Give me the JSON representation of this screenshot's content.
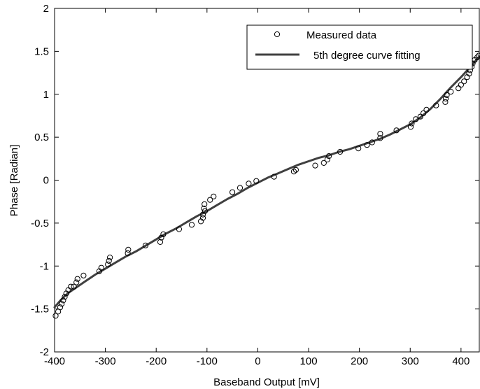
{
  "chart_data": {
    "type": "scatter",
    "title": "",
    "xlabel": "Baseband Output [mV]",
    "ylabel": "Phase [Radian]",
    "xlim": [
      -400,
      436
    ],
    "ylim": [
      -2,
      2
    ],
    "xticks": [
      -400,
      -300,
      -200,
      -100,
      0,
      100,
      200,
      300,
      400
    ],
    "yticks": [
      -2,
      -1.5,
      -1,
      -0.5,
      0,
      0.5,
      1,
      1.5,
      2
    ],
    "xtick_labels": [
      "-400",
      "-300",
      "-200",
      "-100",
      "0",
      "100",
      "200",
      "300",
      "400"
    ],
    "ytick_labels": [
      "-2",
      "-1.5",
      "-1",
      "-0.5",
      "0",
      "0.5",
      "1",
      "1.5",
      "2"
    ],
    "grid": false,
    "legend_position": "top-right",
    "series": [
      {
        "name": "Measured data",
        "marker": "open-circle",
        "color": "#000000",
        "points": [
          [
            -398,
            -1.58
          ],
          [
            -393,
            -1.53
          ],
          [
            -389,
            -1.48
          ],
          [
            -386,
            -1.44
          ],
          [
            -383,
            -1.4
          ],
          [
            -380,
            -1.36
          ],
          [
            -377,
            -1.32
          ],
          [
            -373,
            -1.28
          ],
          [
            -368,
            -1.24
          ],
          [
            -362,
            -1.24
          ],
          [
            -357,
            -1.19
          ],
          [
            -355,
            -1.15
          ],
          [
            -343,
            -1.11
          ],
          [
            -312,
            -1.06
          ],
          [
            -308,
            -1.02
          ],
          [
            -295,
            -0.98
          ],
          [
            -293,
            -0.94
          ],
          [
            -291,
            -0.9
          ],
          [
            -256,
            -0.85
          ],
          [
            -255,
            -0.81
          ],
          [
            -221,
            -0.76
          ],
          [
            -192,
            -0.72
          ],
          [
            -190,
            -0.67
          ],
          [
            -186,
            -0.63
          ],
          [
            -155,
            -0.57
          ],
          [
            -130,
            -0.52
          ],
          [
            -112,
            -0.48
          ],
          [
            -108,
            -0.44
          ],
          [
            -108,
            -0.4
          ],
          [
            -104,
            -0.36
          ],
          [
            -106,
            -0.33
          ],
          [
            -105,
            -0.28
          ],
          [
            -94,
            -0.23
          ],
          [
            -87,
            -0.19
          ],
          [
            -50,
            -0.14
          ],
          [
            -35,
            -0.09
          ],
          [
            -18,
            -0.04
          ],
          [
            -3,
            -0.01
          ],
          [
            32,
            0.04
          ],
          [
            71,
            0.1
          ],
          [
            75,
            0.12
          ],
          [
            113,
            0.17
          ],
          [
            130,
            0.2
          ],
          [
            137,
            0.24
          ],
          [
            140,
            0.28
          ],
          [
            162,
            0.33
          ],
          [
            198,
            0.37
          ],
          [
            215,
            0.41
          ],
          [
            225,
            0.44
          ],
          [
            241,
            0.49
          ],
          [
            241,
            0.54
          ],
          [
            273,
            0.58
          ],
          [
            301,
            0.62
          ],
          [
            303,
            0.66
          ],
          [
            311,
            0.71
          ],
          [
            320,
            0.74
          ],
          [
            326,
            0.78
          ],
          [
            332,
            0.82
          ],
          [
            351,
            0.87
          ],
          [
            369,
            0.91
          ],
          [
            370,
            0.95
          ],
          [
            372,
            0.99
          ],
          [
            380,
            1.03
          ],
          [
            395,
            1.07
          ],
          [
            400,
            1.11
          ],
          [
            406,
            1.15
          ],
          [
            412,
            1.2
          ],
          [
            416,
            1.24
          ],
          [
            418,
            1.28
          ],
          [
            421,
            1.32
          ],
          [
            423,
            1.36
          ],
          [
            427,
            1.4
          ],
          [
            432,
            1.43
          ],
          [
            435,
            1.45
          ]
        ]
      },
      {
        "name": "5th degree curve fitting",
        "line": "solid",
        "color": "#404040",
        "x": [
          -400,
          -390,
          -380,
          -370,
          -360,
          -350,
          -340,
          -320,
          -300,
          -280,
          -260,
          -240,
          -220,
          -200,
          -180,
          -160,
          -140,
          -120,
          -100,
          -80,
          -60,
          -40,
          -20,
          0,
          20,
          40,
          60,
          80,
          100,
          120,
          140,
          160,
          180,
          200,
          220,
          240,
          260,
          280,
          300,
          320,
          340,
          360,
          380,
          400,
          420,
          436
        ],
        "y": [
          -1.48,
          -1.41,
          -1.35,
          -1.3,
          -1.26,
          -1.22,
          -1.18,
          -1.1,
          -1.03,
          -0.96,
          -0.89,
          -0.83,
          -0.76,
          -0.69,
          -0.62,
          -0.56,
          -0.49,
          -0.42,
          -0.36,
          -0.29,
          -0.22,
          -0.16,
          -0.09,
          -0.03,
          0.03,
          0.08,
          0.13,
          0.18,
          0.22,
          0.26,
          0.29,
          0.33,
          0.36,
          0.4,
          0.44,
          0.48,
          0.53,
          0.59,
          0.65,
          0.73,
          0.83,
          0.95,
          1.08,
          1.2,
          1.33,
          1.44
        ]
      }
    ]
  }
}
